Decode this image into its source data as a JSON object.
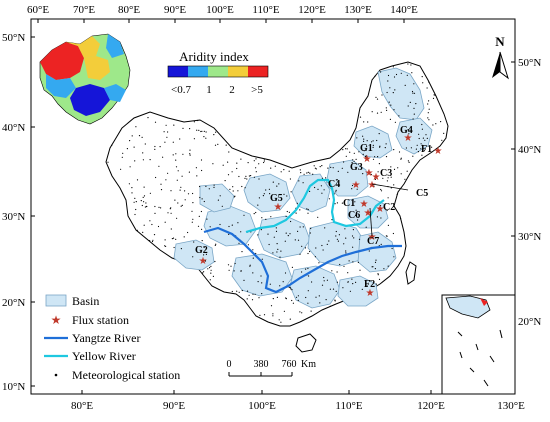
{
  "axes": {
    "top_ticks": [
      "60°E",
      "70°E",
      "80°E",
      "90°E",
      "100°E",
      "110°E",
      "120°E",
      "130°E",
      "140°E"
    ],
    "bottom_ticks": [
      "80°E",
      "90°E",
      "100°E",
      "110°E",
      "120°E",
      "130°E"
    ],
    "left_ticks": [
      "50°N",
      "40°N",
      "30°N",
      "20°N",
      "10°N"
    ],
    "right_ticks": [
      "50°N",
      "40°N",
      "30°N",
      "20°N"
    ]
  },
  "aridity": {
    "title": "Aridity index",
    "labels": [
      "<0.7",
      "1",
      "2",
      ">5"
    ],
    "colors": [
      "#1515d8",
      "#34a9f0",
      "#9ee88a",
      "#f3cd3a",
      "#ec2323"
    ]
  },
  "north_arrow": {
    "label": "N"
  },
  "stations": [
    {
      "label": "G1"
    },
    {
      "label": "G2"
    },
    {
      "label": "G3"
    },
    {
      "label": "G4"
    },
    {
      "label": "G5"
    },
    {
      "label": "F1"
    },
    {
      "label": "F2"
    },
    {
      "label": "C1"
    },
    {
      "label": "C2"
    },
    {
      "label": "C3"
    },
    {
      "label": "C4"
    },
    {
      "label": "C5"
    },
    {
      "label": "C6"
    },
    {
      "label": "C7"
    }
  ],
  "scale_bar": {
    "labels": [
      "0",
      "380",
      "760"
    ],
    "unit": "Km"
  },
  "legend": {
    "basin": "Basin",
    "flux_station": "Flux station",
    "yangtze": "Yangtze River",
    "yellow": "Yellow River",
    "meteorological": "Meteorological station"
  },
  "colors": {
    "basin_fill": "#cfe6f5",
    "basin_stroke": "#7aa6c6",
    "yangtze": "#1f6fd8",
    "yellow_river": "#1ec8e0",
    "flux_marker": "#c0392b"
  }
}
